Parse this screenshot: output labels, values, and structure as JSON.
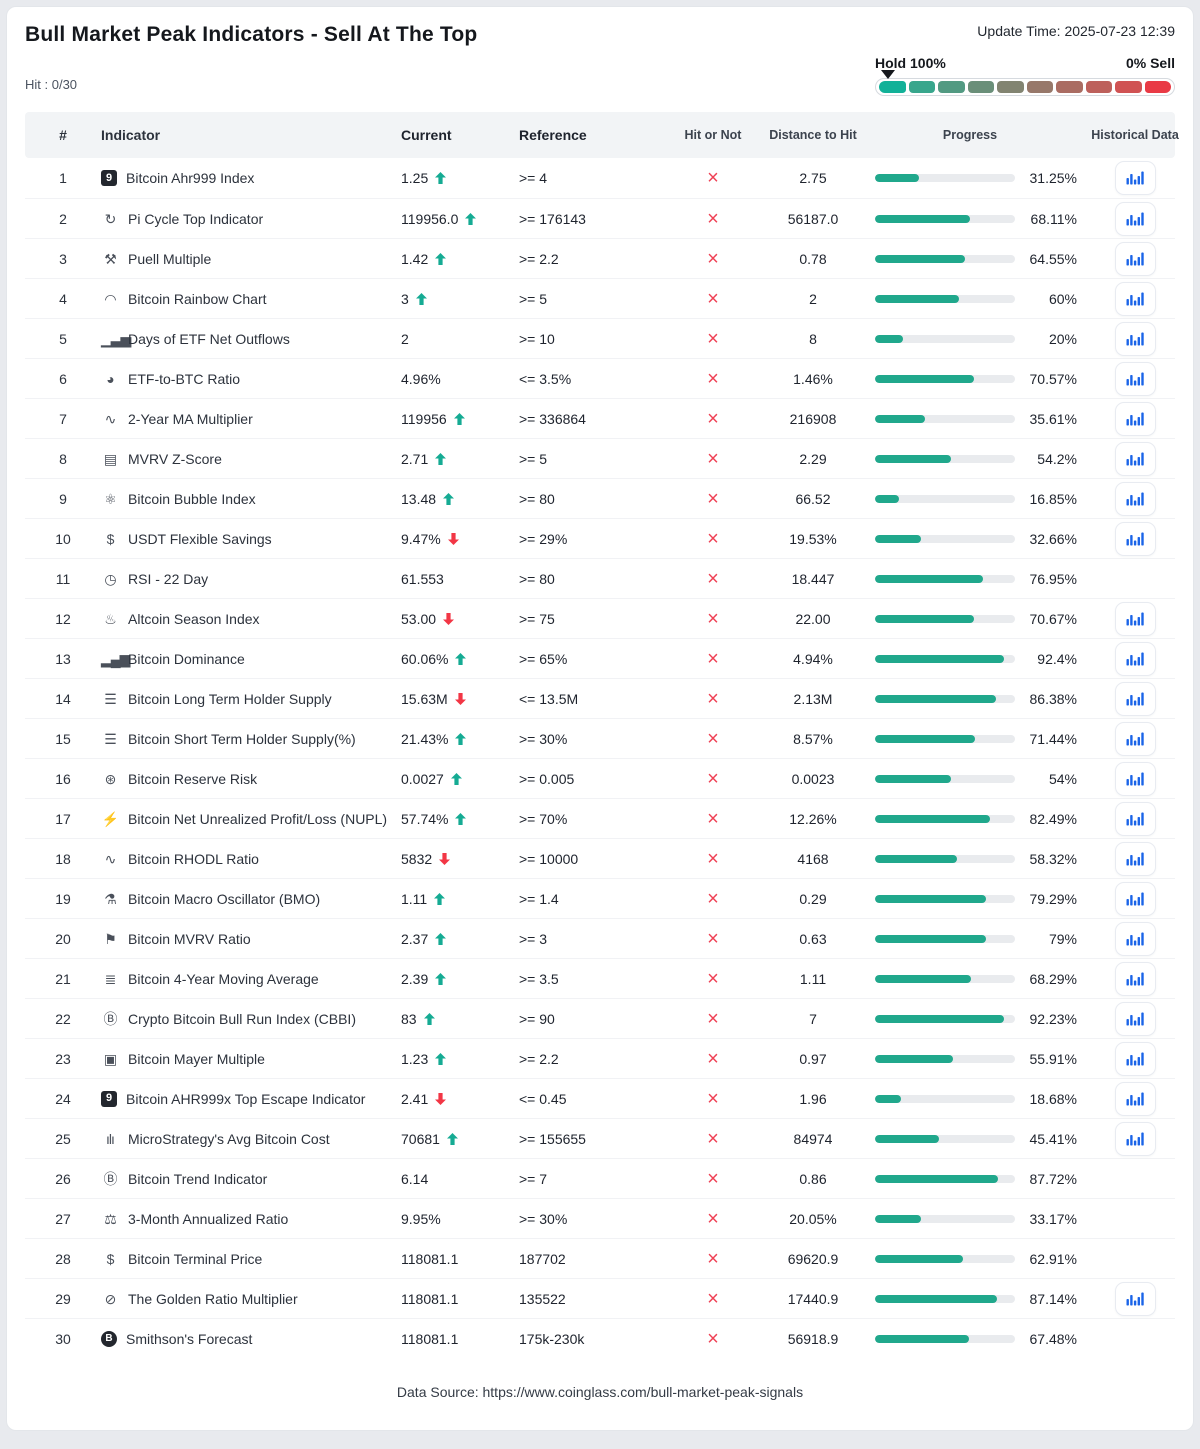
{
  "page": {
    "title": "Bull Market Peak Indicators - Sell At The Top",
    "update_time": "Update Time: 2025-07-23 12:39",
    "hit_count": "Hit : 0/30"
  },
  "scale": {
    "left_label": "Hold 100%",
    "right_label": "0% Sell",
    "marker_position": "left",
    "segments": [
      "#12b198",
      "#38a68c",
      "#529a82",
      "#6a8f79",
      "#828471",
      "#97786a",
      "#aa6c62",
      "#bd605b",
      "#d05253",
      "#e93a45"
    ]
  },
  "colors": {
    "progress_fill": "#20a88c",
    "up_green": "#15ab93",
    "down_red": "#f23645",
    "miss_red": "#ef4155",
    "history_blue": "#1a64e8"
  },
  "table": {
    "columns": [
      "#",
      "Indicator",
      "Current",
      "Reference",
      "Hit or Not",
      "Distance to Hit",
      "Progress",
      "Historical Data"
    ],
    "hit_glyph": "×",
    "rows": [
      {
        "num": "1",
        "icon": {
          "name": "ahr999-badge-icon",
          "glyph": "9",
          "style": "badge-square"
        },
        "indicator": "Bitcoin Ahr999 Index",
        "current": "1.25",
        "trend": "up",
        "reference": ">= 4",
        "distance": "2.75",
        "progress_pct": 31.25,
        "progress_label": "31.25%",
        "has_history": true
      },
      {
        "num": "2",
        "icon": {
          "name": "pi-cycle-icon",
          "glyph": "↻",
          "style": "plain"
        },
        "indicator": "Pi Cycle Top Indicator",
        "current": "119956.0",
        "trend": "up",
        "reference": ">= 176143",
        "distance": "56187.0",
        "progress_pct": 68.11,
        "progress_label": "68.11%",
        "has_history": true
      },
      {
        "num": "3",
        "icon": {
          "name": "puell-multiple-icon",
          "glyph": "⚒",
          "style": "plain"
        },
        "indicator": "Puell Multiple",
        "current": "1.42",
        "trend": "up",
        "reference": ">= 2.2",
        "distance": "0.78",
        "progress_pct": 64.55,
        "progress_label": "64.55%",
        "has_history": true
      },
      {
        "num": "4",
        "icon": {
          "name": "rainbow-chart-icon",
          "glyph": "◠",
          "style": "plain"
        },
        "indicator": "Bitcoin Rainbow Chart",
        "current": "3",
        "trend": "up",
        "reference": ">= 5",
        "distance": "2",
        "progress_pct": 60,
        "progress_label": "60%",
        "has_history": true
      },
      {
        "num": "5",
        "icon": {
          "name": "etf-outflow-bars-icon",
          "glyph": "▁▃▅",
          "style": "plain"
        },
        "indicator": "Days of ETF Net Outflows",
        "current": "2",
        "trend": "none",
        "reference": ">= 10",
        "distance": "8",
        "progress_pct": 20,
        "progress_label": "20%",
        "has_history": true
      },
      {
        "num": "6",
        "icon": {
          "name": "pie-chart-icon",
          "glyph": "◕",
          "style": "plain"
        },
        "indicator": "ETF-to-BTC Ratio",
        "current": "4.96%",
        "trend": "none",
        "reference": "<= 3.5%",
        "distance": "1.46%",
        "progress_pct": 70.57,
        "progress_label": "70.57%",
        "has_history": true
      },
      {
        "num": "7",
        "icon": {
          "name": "line-chart-icon",
          "glyph": "∿",
          "style": "plain"
        },
        "indicator": "2-Year MA Multiplier",
        "current": "119956",
        "trend": "up",
        "reference": ">= 336864",
        "distance": "216908",
        "progress_pct": 35.61,
        "progress_label": "35.61%",
        "has_history": true
      },
      {
        "num": "8",
        "icon": {
          "name": "clipboard-chart-icon",
          "glyph": "▤",
          "style": "plain"
        },
        "indicator": "MVRV Z-Score",
        "current": "2.71",
        "trend": "up",
        "reference": ">= 5",
        "distance": "2.29",
        "progress_pct": 54.2,
        "progress_label": "54.2%",
        "has_history": true
      },
      {
        "num": "9",
        "icon": {
          "name": "molecule-icon",
          "glyph": "⚛",
          "style": "plain"
        },
        "indicator": "Bitcoin Bubble Index",
        "current": "13.48",
        "trend": "up",
        "reference": ">= 80",
        "distance": "66.52",
        "progress_pct": 16.85,
        "progress_label": "16.85%",
        "has_history": true
      },
      {
        "num": "10",
        "icon": {
          "name": "dollar-icon",
          "glyph": "$",
          "style": "plain"
        },
        "indicator": "USDT Flexible Savings",
        "current": "9.47%",
        "trend": "down",
        "reference": ">= 29%",
        "distance": "19.53%",
        "progress_pct": 32.66,
        "progress_label": "32.66%",
        "has_history": true
      },
      {
        "num": "11",
        "icon": {
          "name": "clock-icon",
          "glyph": "◷",
          "style": "plain"
        },
        "indicator": "RSI - 22 Day",
        "current": "61.553",
        "trend": "none",
        "reference": ">= 80",
        "distance": "18.447",
        "progress_pct": 76.95,
        "progress_label": "76.95%",
        "has_history": false
      },
      {
        "num": "12",
        "icon": {
          "name": "flame-icon",
          "glyph": "♨",
          "style": "plain"
        },
        "indicator": "Altcoin Season Index",
        "current": "53.00",
        "trend": "down",
        "reference": ">= 75",
        "distance": "22.00",
        "progress_pct": 70.67,
        "progress_label": "70.67%",
        "has_history": true
      },
      {
        "num": "13",
        "icon": {
          "name": "signal-bars-icon",
          "glyph": "▂▄▆",
          "style": "plain"
        },
        "indicator": "Bitcoin Dominance",
        "current": "60.06%",
        "trend": "up",
        "reference": ">= 65%",
        "distance": "4.94%",
        "progress_pct": 92.4,
        "progress_label": "92.4%",
        "has_history": true
      },
      {
        "num": "14",
        "icon": {
          "name": "database-icon",
          "glyph": "☰",
          "style": "plain"
        },
        "indicator": "Bitcoin Long Term Holder Supply",
        "current": "15.63M",
        "trend": "down",
        "reference": "<= 13.5M",
        "distance": "2.13M",
        "progress_pct": 86.38,
        "progress_label": "86.38%",
        "has_history": true
      },
      {
        "num": "15",
        "icon": {
          "name": "database-icon",
          "glyph": "☰",
          "style": "plain"
        },
        "indicator": "Bitcoin Short Term Holder Supply(%)",
        "current": "21.43%",
        "trend": "up",
        "reference": ">= 30%",
        "distance": "8.57%",
        "progress_pct": 71.44,
        "progress_label": "71.44%",
        "has_history": true
      },
      {
        "num": "16",
        "icon": {
          "name": "reserve-risk-icon",
          "glyph": "⊛",
          "style": "plain"
        },
        "indicator": "Bitcoin Reserve Risk",
        "current": "0.0027",
        "trend": "up",
        "reference": ">= 0.005",
        "distance": "0.0023",
        "progress_pct": 54,
        "progress_label": "54%",
        "has_history": true
      },
      {
        "num": "17",
        "icon": {
          "name": "battery-bolt-icon",
          "glyph": "⚡",
          "style": "plain"
        },
        "indicator": "Bitcoin Net Unrealized Profit/Loss (NUPL)",
        "current": "57.74%",
        "trend": "up",
        "reference": ">= 70%",
        "distance": "12.26%",
        "progress_pct": 82.49,
        "progress_label": "82.49%",
        "has_history": true
      },
      {
        "num": "18",
        "icon": {
          "name": "pulse-wave-icon",
          "glyph": "∿",
          "style": "plain"
        },
        "indicator": "Bitcoin RHODL Ratio",
        "current": "5832",
        "trend": "down",
        "reference": ">= 10000",
        "distance": "4168",
        "progress_pct": 58.32,
        "progress_label": "58.32%",
        "has_history": true
      },
      {
        "num": "19",
        "icon": {
          "name": "weight-scale-icon",
          "glyph": "⚗",
          "style": "plain"
        },
        "indicator": "Bitcoin Macro Oscillator (BMO)",
        "current": "1.11",
        "trend": "up",
        "reference": ">= 1.4",
        "distance": "0.29",
        "progress_pct": 79.29,
        "progress_label": "79.29%",
        "has_history": true
      },
      {
        "num": "20",
        "icon": {
          "name": "flag-icon",
          "glyph": "⚑",
          "style": "plain"
        },
        "indicator": "Bitcoin MVRV Ratio",
        "current": "2.37",
        "trend": "up",
        "reference": ">= 3",
        "distance": "0.63",
        "progress_pct": 79,
        "progress_label": "79%",
        "has_history": true
      },
      {
        "num": "21",
        "icon": {
          "name": "stacked-lines-icon",
          "glyph": "≣",
          "style": "plain"
        },
        "indicator": "Bitcoin 4-Year Moving Average",
        "current": "2.39",
        "trend": "up",
        "reference": ">= 3.5",
        "distance": "1.11",
        "progress_pct": 68.29,
        "progress_label": "68.29%",
        "has_history": true
      },
      {
        "num": "22",
        "icon": {
          "name": "circled-b-icon",
          "glyph": "Ⓑ",
          "style": "plain"
        },
        "indicator": "Crypto Bitcoin Bull Run Index (CBBI)",
        "current": "83",
        "trend": "up",
        "reference": ">= 90",
        "distance": "7",
        "progress_pct": 92.23,
        "progress_label": "92.23%",
        "has_history": true
      },
      {
        "num": "23",
        "icon": {
          "name": "copies-icon",
          "glyph": "▣",
          "style": "plain"
        },
        "indicator": "Bitcoin Mayer Multiple",
        "current": "1.23",
        "trend": "up",
        "reference": ">= 2.2",
        "distance": "0.97",
        "progress_pct": 55.91,
        "progress_label": "55.91%",
        "has_history": true
      },
      {
        "num": "24",
        "icon": {
          "name": "ahr999x-badge-icon",
          "glyph": "9",
          "style": "badge-square"
        },
        "indicator": "Bitcoin AHR999x Top Escape Indicator",
        "current": "2.41",
        "trend": "down",
        "reference": "<= 0.45",
        "distance": "1.96",
        "progress_pct": 18.68,
        "progress_label": "18.68%",
        "has_history": true
      },
      {
        "num": "25",
        "icon": {
          "name": "mini-bars-icon",
          "glyph": "ılı",
          "style": "plain"
        },
        "indicator": "MicroStrategy's Avg Bitcoin Cost",
        "current": "70681",
        "trend": "up",
        "reference": ">= 155655",
        "distance": "84974",
        "progress_pct": 45.41,
        "progress_label": "45.41%",
        "has_history": true
      },
      {
        "num": "26",
        "icon": {
          "name": "circled-b-icon",
          "glyph": "Ⓑ",
          "style": "plain"
        },
        "indicator": "Bitcoin Trend Indicator",
        "current": "6.14",
        "trend": "none",
        "reference": ">= 7",
        "distance": "0.86",
        "progress_pct": 87.72,
        "progress_label": "87.72%",
        "has_history": false
      },
      {
        "num": "27",
        "icon": {
          "name": "balance-scale-icon",
          "glyph": "⚖",
          "style": "plain"
        },
        "indicator": "3-Month Annualized Ratio",
        "current": "9.95%",
        "trend": "none",
        "reference": ">= 30%",
        "distance": "20.05%",
        "progress_pct": 33.17,
        "progress_label": "33.17%",
        "has_history": false
      },
      {
        "num": "28",
        "icon": {
          "name": "dollar-trend-icon",
          "glyph": "$",
          "style": "plain"
        },
        "indicator": "Bitcoin Terminal Price",
        "current": "118081.1",
        "trend": "none",
        "reference": "187702",
        "distance": "69620.9",
        "progress_pct": 62.91,
        "progress_label": "62.91%",
        "has_history": false
      },
      {
        "num": "29",
        "icon": {
          "name": "golden-ratio-icon",
          "glyph": "⊘",
          "style": "plain"
        },
        "indicator": "The Golden Ratio Multiplier",
        "current": "118081.1",
        "trend": "none",
        "reference": "135522",
        "distance": "17440.9",
        "progress_pct": 87.14,
        "progress_label": "87.14%",
        "has_history": true
      },
      {
        "num": "30",
        "icon": {
          "name": "bitcoin-badge-icon",
          "glyph": "B",
          "style": "badge-circle"
        },
        "indicator": "Smithson's Forecast",
        "current": "118081.1",
        "trend": "none",
        "reference": "175k-230k",
        "distance": "56918.9",
        "progress_pct": 67.48,
        "progress_label": "67.48%",
        "has_history": false
      }
    ]
  },
  "footer": {
    "data_source": "Data Source: https://www.coinglass.com/bull-market-peak-signals"
  }
}
